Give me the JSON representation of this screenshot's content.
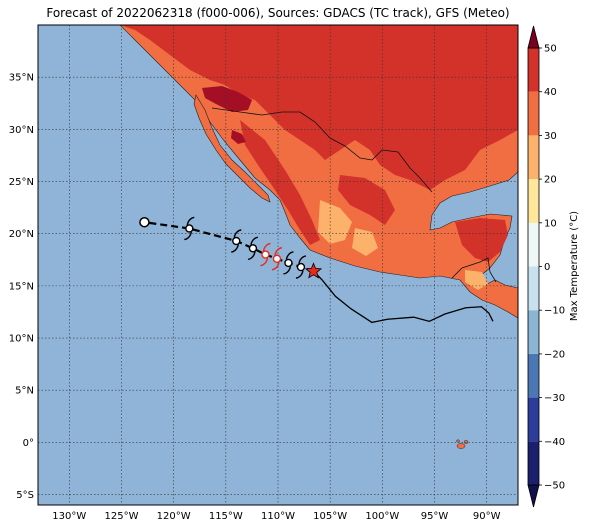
{
  "title": "Forecast of 2022062318 (f000-006), Sources: GDACS (TC track), GFS (Meteo)",
  "colors": {
    "ocean": "#8fb4d8",
    "land_20_30": "#f16d42",
    "land_30_40": "#d3322b",
    "land_40_50": "#a50f26",
    "land_10_20": "#fdb26c",
    "border": "#000000",
    "track": "#000000",
    "active_marker": "#e8291c"
  },
  "map": {
    "lon_range": [
      -133,
      -87
    ],
    "lat_range": [
      -6,
      40
    ],
    "lon_ticks": [
      {
        "value": -130,
        "label": "130°W"
      },
      {
        "value": -125,
        "label": "125°W"
      },
      {
        "value": -120,
        "label": "120°W"
      },
      {
        "value": -115,
        "label": "115°W"
      },
      {
        "value": -110,
        "label": "110°W"
      },
      {
        "value": -105,
        "label": "105°W"
      },
      {
        "value": -100,
        "label": "100°W"
      },
      {
        "value": -95,
        "label": "95°W"
      },
      {
        "value": -90,
        "label": "90°W"
      }
    ],
    "lat_ticks": [
      {
        "value": 35,
        "label": "35°N"
      },
      {
        "value": 30,
        "label": "30°N"
      },
      {
        "value": 25,
        "label": "25°N"
      },
      {
        "value": 20,
        "label": "20°N"
      },
      {
        "value": 15,
        "label": "15°N"
      },
      {
        "value": 10,
        "label": "10°N"
      },
      {
        "value": 5,
        "label": "5°N"
      },
      {
        "value": 0,
        "label": "0°"
      },
      {
        "value": -5,
        "label": "5°S"
      }
    ],
    "grid": true
  },
  "track": {
    "forecast_points": [
      {
        "lon": -106.6,
        "lat": 16.4,
        "marker": "star"
      },
      {
        "lon": -107.8,
        "lat": 16.8,
        "marker": "storm-black"
      },
      {
        "lon": -109.0,
        "lat": 17.2,
        "marker": "storm-black"
      },
      {
        "lon": -110.1,
        "lat": 17.6,
        "marker": "storm-red"
      },
      {
        "lon": -111.2,
        "lat": 18.0,
        "marker": "storm-red"
      },
      {
        "lon": -112.4,
        "lat": 18.6,
        "marker": "storm-black"
      },
      {
        "lon": -114.0,
        "lat": 19.3,
        "marker": "storm-black"
      },
      {
        "lon": -118.5,
        "lat": 20.5,
        "marker": "storm-black"
      },
      {
        "lon": -122.8,
        "lat": 21.1,
        "marker": "low-circle"
      }
    ],
    "past_track": [
      {
        "lon": -106.6,
        "lat": 16.4
      },
      {
        "lon": -105.8,
        "lat": 15.6
      },
      {
        "lon": -104.5,
        "lat": 14.0
      },
      {
        "lon": -103.0,
        "lat": 12.8
      },
      {
        "lon": -101.0,
        "lat": 11.5
      },
      {
        "lon": -99.5,
        "lat": 11.8
      },
      {
        "lon": -97.0,
        "lat": 12.0
      },
      {
        "lon": -95.5,
        "lat": 11.6
      },
      {
        "lon": -94.0,
        "lat": 12.3
      },
      {
        "lon": -92.0,
        "lat": 12.9
      },
      {
        "lon": -90.5,
        "lat": 13.0
      },
      {
        "lon": -89.8,
        "lat": 12.4
      },
      {
        "lon": -89.4,
        "lat": 11.6
      }
    ]
  },
  "colorbar": {
    "label": "Max Temperature (°C)",
    "min": -50,
    "max": 50,
    "step": 10,
    "tick_labels": [
      "50",
      "40",
      "30",
      "20",
      "10",
      "0",
      "−10",
      "−20",
      "−30",
      "−40",
      "−50"
    ],
    "bands": [
      "#1a1f6e",
      "#2c3c9a",
      "#4c77b5",
      "#8ab6d4",
      "#c7e2ee",
      "#eef7f6",
      "#fee79a",
      "#fdb26c",
      "#f16d42",
      "#d3322b",
      "#a50f26"
    ],
    "extend_low_color": "#10104a",
    "extend_high_color": "#7a0020"
  }
}
